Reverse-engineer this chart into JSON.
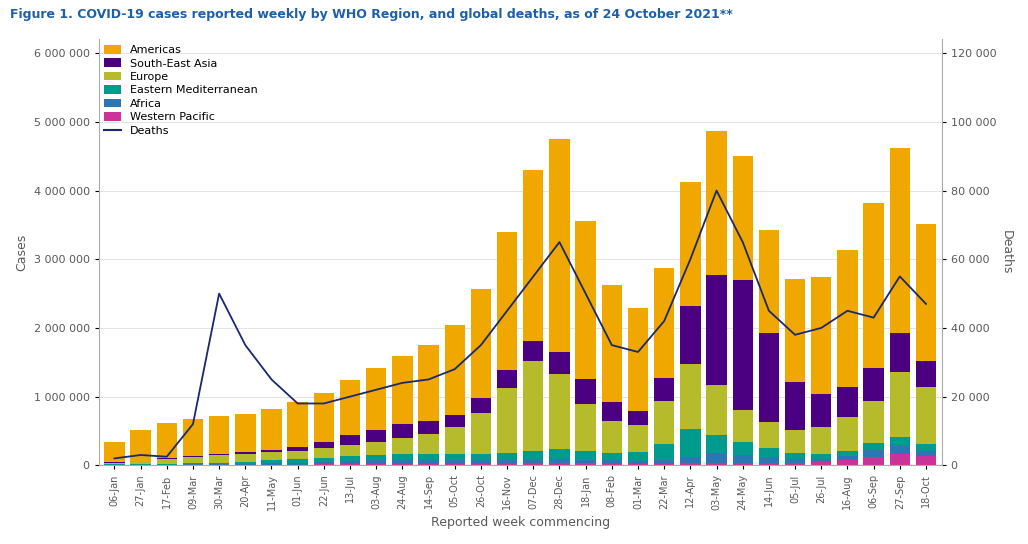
{
  "title": "Figure 1. COVID-19 cases reported weekly by WHO Region, and global deaths, as of 24 October 2021**",
  "xlabel": "Reported week commencing",
  "ylabel_left": "Cases",
  "ylabel_right": "Deaths",
  "title_color": "#1f5fa6",
  "axis_label_color": "#595959",
  "tick_label_color": "#595959",
  "background_color": "#ffffff",
  "weeks": [
    "06-Jan",
    "27-Jan",
    "17-Feb",
    "09-Mar",
    "30-Mar",
    "20-Apr",
    "11-May",
    "01-Jun",
    "22-Jun",
    "13-Jul",
    "03-Aug",
    "24-Aug",
    "14-Sep",
    "05-Oct",
    "26-Oct",
    "16-Nov",
    "07-Dec",
    "28-Dec",
    "18-Jan",
    "08-Feb",
    "01-Mar",
    "22-Mar",
    "12-Apr",
    "03-May",
    "24-May",
    "14-Jun",
    "05-Jul",
    "26-Jul",
    "16-Aug",
    "06-Sep",
    "27-Sep",
    "18-Oct"
  ],
  "Americas": [
    300000,
    450000,
    520000,
    540000,
    550000,
    560000,
    600000,
    650000,
    720000,
    800000,
    900000,
    1000000,
    1100000,
    1300000,
    1600000,
    2000000,
    2500000,
    3100000,
    2300000,
    1700000,
    1500000,
    1600000,
    1800000,
    2100000,
    1800000,
    1500000,
    1500000,
    1700000,
    2000000,
    2400000,
    2700000,
    2000000
  ],
  "SouthEastAsia": [
    5000,
    8000,
    10000,
    13000,
    18000,
    25000,
    35000,
    55000,
    90000,
    140000,
    180000,
    200000,
    195000,
    185000,
    210000,
    260000,
    290000,
    320000,
    360000,
    270000,
    210000,
    340000,
    850000,
    1600000,
    1900000,
    1300000,
    700000,
    480000,
    430000,
    480000,
    560000,
    380000
  ],
  "Europe": [
    25000,
    45000,
    70000,
    90000,
    110000,
    110000,
    110000,
    120000,
    140000,
    170000,
    190000,
    240000,
    290000,
    390000,
    600000,
    950000,
    1300000,
    1100000,
    680000,
    470000,
    380000,
    620000,
    950000,
    720000,
    470000,
    380000,
    330000,
    390000,
    490000,
    620000,
    950000,
    820000
  ],
  "EasternMediterranean": [
    7000,
    9000,
    11000,
    14000,
    20000,
    35000,
    50000,
    55000,
    60000,
    65000,
    70000,
    75000,
    80000,
    85000,
    90000,
    110000,
    130000,
    140000,
    130000,
    110000,
    140000,
    230000,
    400000,
    260000,
    190000,
    130000,
    90000,
    80000,
    80000,
    100000,
    130000,
    110000
  ],
  "Africa": [
    2000,
    3000,
    5000,
    7000,
    9000,
    12000,
    18000,
    25000,
    35000,
    50000,
    60000,
    65000,
    60000,
    55000,
    50000,
    45000,
    55000,
    60000,
    55000,
    45000,
    38000,
    55000,
    95000,
    150000,
    110000,
    80000,
    55000,
    45000,
    65000,
    100000,
    110000,
    75000
  ],
  "WesternPacific": [
    3000,
    4000,
    5000,
    6000,
    7000,
    8000,
    9000,
    10000,
    12000,
    14000,
    16000,
    18000,
    20000,
    22000,
    24000,
    26000,
    28000,
    30000,
    28000,
    25000,
    22000,
    25000,
    30000,
    35000,
    35000,
    35000,
    38000,
    45000,
    70000,
    120000,
    170000,
    130000
  ],
  "Deaths": [
    2000,
    3000,
    2500,
    12000,
    50000,
    35000,
    25000,
    18000,
    18000,
    20000,
    22000,
    24000,
    25000,
    28000,
    35000,
    45000,
    55000,
    65000,
    50000,
    35000,
    33000,
    42000,
    60000,
    80000,
    65000,
    45000,
    38000,
    40000,
    45000,
    43000,
    55000,
    47000
  ],
  "colors": {
    "Americas": "#f0a800",
    "SouthEastAsia": "#4b0082",
    "Europe": "#b5bb2a",
    "EasternMediterranean": "#009b8d",
    "Africa": "#2e75b6",
    "WesternPacific": "#cc3399",
    "Deaths": "#1a2870"
  },
  "ylim_left": [
    0,
    6200000
  ],
  "ylim_right": [
    0,
    124000
  ],
  "yticks_left": [
    0,
    1000000,
    2000000,
    3000000,
    4000000,
    5000000,
    6000000
  ],
  "yticks_right": [
    0,
    20000,
    40000,
    60000,
    80000,
    100000,
    120000
  ]
}
